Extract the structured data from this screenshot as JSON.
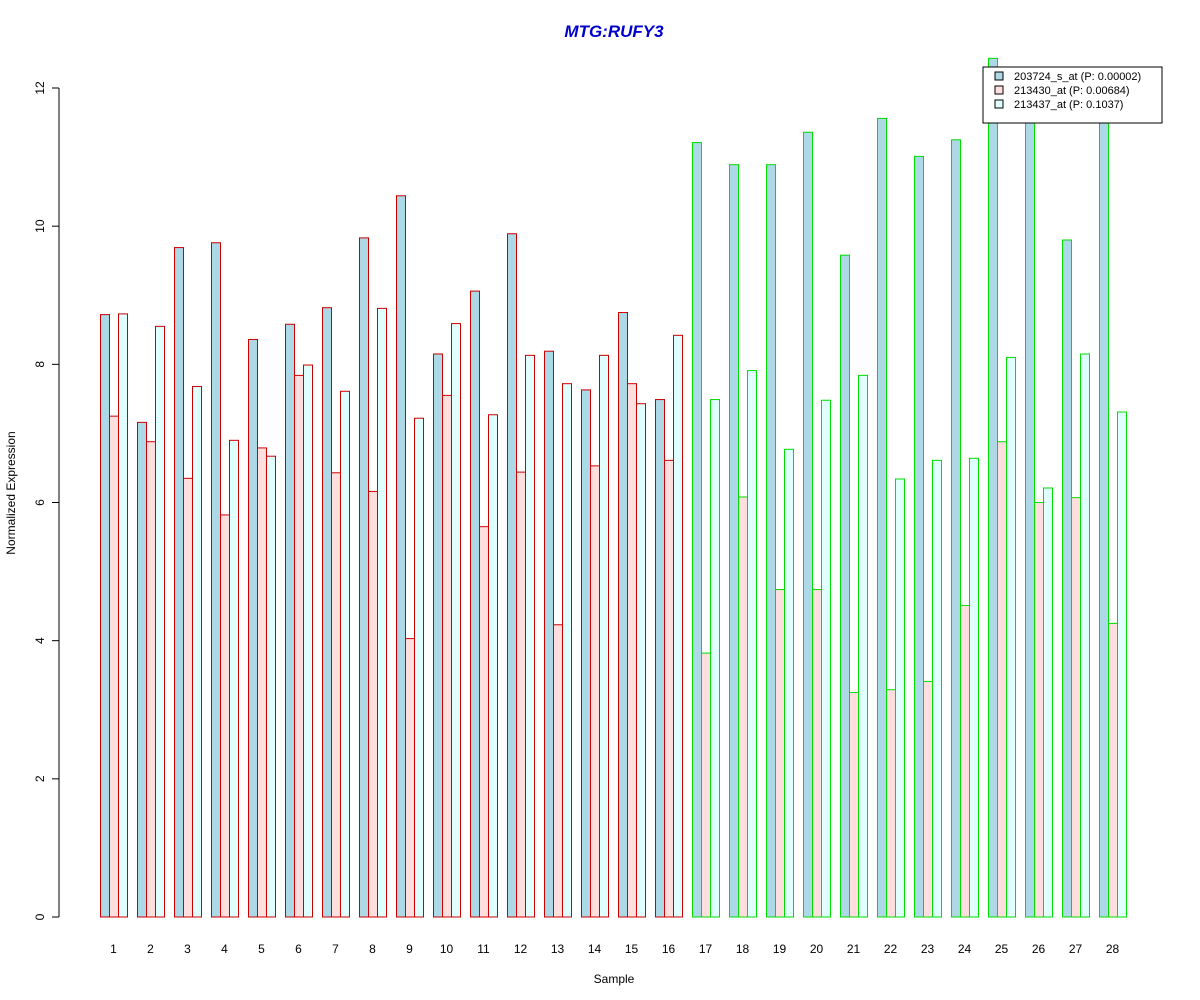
{
  "chart_data": {
    "type": "bar",
    "title": "MTG:RUFY3",
    "xlabel": "Sample",
    "ylabel": "Normalized Expression",
    "ylim": [
      0,
      12
    ],
    "yticks": [
      0,
      2,
      4,
      6,
      8,
      10,
      12
    ],
    "grid": false,
    "legend_position": "top-right",
    "categories": [
      "1",
      "2",
      "3",
      "4",
      "5",
      "6",
      "7",
      "8",
      "9",
      "10",
      "11",
      "12",
      "13",
      "14",
      "15",
      "16",
      "17",
      "18",
      "19",
      "20",
      "21",
      "22",
      "23",
      "24",
      "25",
      "26",
      "27",
      "28"
    ],
    "group_border_colors": [
      "#cc0000",
      "#cc0000",
      "#cc0000",
      "#cc0000",
      "#cc0000",
      "#cc0000",
      "#cc0000",
      "#cc0000",
      "#cc0000",
      "#cc0000",
      "#cc0000",
      "#cc0000",
      "#cc0000",
      "#cc0000",
      "#cc0000",
      "#cc0000",
      "#00dd00",
      "#00dd00",
      "#00dd00",
      "#00dd00",
      "#00dd00",
      "#00dd00",
      "#00dd00",
      "#00dd00",
      "#00dd00",
      "#00dd00",
      "#00dd00",
      "#00dd00"
    ],
    "series": [
      {
        "name": "203724_s_at (P: 0.00002)",
        "fill": "#add8e6",
        "values": [
          8.72,
          7.16,
          9.69,
          9.76,
          8.36,
          8.58,
          8.82,
          9.83,
          10.44,
          8.15,
          9.06,
          9.89,
          8.19,
          7.63,
          8.75,
          7.49,
          11.21,
          10.89,
          10.89,
          11.36,
          9.58,
          11.56,
          11.01,
          11.25,
          12.43,
          11.61,
          9.8,
          11.62
        ]
      },
      {
        "name": "213430_at (P: 0.00684)",
        "fill": "#ffdede",
        "values": [
          7.25,
          6.88,
          6.35,
          5.82,
          6.79,
          7.84,
          6.43,
          6.16,
          4.03,
          7.55,
          5.65,
          6.44,
          4.23,
          6.53,
          7.72,
          6.61,
          3.82,
          6.08,
          4.74,
          4.74,
          3.25,
          3.29,
          3.41,
          4.51,
          6.88,
          6.0,
          6.07,
          4.25
        ]
      },
      {
        "name": "213437_at (P: 0.1037)",
        "fill": "#e0ffff",
        "values": [
          8.73,
          8.55,
          7.68,
          6.9,
          6.67,
          7.99,
          7.61,
          8.81,
          7.22,
          8.59,
          7.27,
          8.13,
          7.72,
          8.13,
          7.43,
          8.42,
          7.49,
          7.91,
          6.77,
          7.48,
          7.84,
          6.34,
          6.61,
          6.64,
          8.1,
          6.21,
          8.15,
          7.31
        ]
      }
    ]
  }
}
